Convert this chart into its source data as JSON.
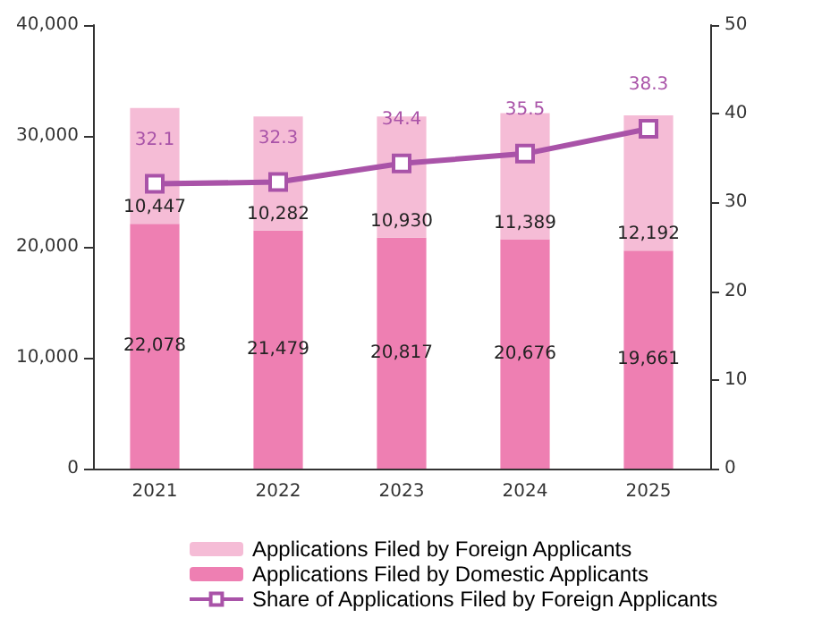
{
  "chart_data": {
    "type": "bar",
    "stacked": true,
    "categories": [
      "2021",
      "2022",
      "2023",
      "2024",
      "2025"
    ],
    "series": [
      {
        "name": "Applications Filed by Domestic Applicants",
        "color": "#ee7fb2",
        "values": [
          22078,
          21479,
          20817,
          20676,
          19661
        ],
        "value_labels": [
          "22,078",
          "21,479",
          "20,817",
          "20,676",
          "19,661"
        ]
      },
      {
        "name": "Applications Filed by Foreign Applicants",
        "color": "#f5bcd6",
        "values": [
          10447,
          10282,
          10930,
          11389,
          12192
        ],
        "value_labels": [
          "10,447",
          "10,282",
          "10,930",
          "11,389",
          "12,192"
        ]
      },
      {
        "name": "Share of Applications Filed by Foreign Applicants",
        "type": "line",
        "axis": "y2",
        "color": "#a953a8",
        "marker": "square",
        "values": [
          32.1,
          32.3,
          34.4,
          35.5,
          38.3
        ]
      }
    ],
    "ylim": [
      0,
      40000
    ],
    "yticks": [
      {
        "value": 0,
        "label": "0"
      },
      {
        "value": 10000,
        "label": "10,000"
      },
      {
        "value": 20000,
        "label": "20,000"
      },
      {
        "value": 30000,
        "label": "30,000"
      },
      {
        "value": 40000,
        "label": "40,000"
      }
    ],
    "y2lim": [
      0,
      50
    ],
    "y2ticks": [
      0,
      10,
      20,
      30,
      40,
      50
    ],
    "data_labels": true,
    "grid": false,
    "legend": "bottom"
  }
}
